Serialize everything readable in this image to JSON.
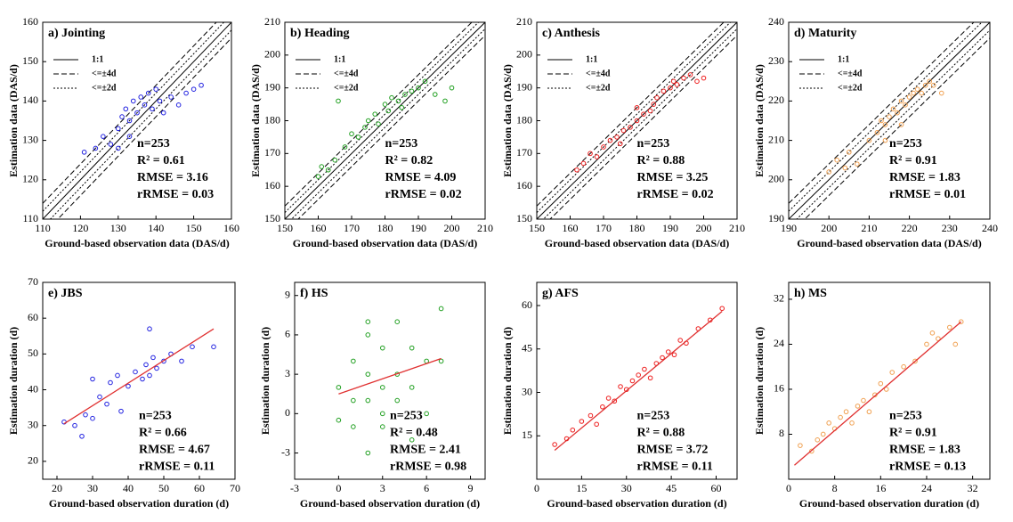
{
  "chart_data": [
    {
      "type": "scatter",
      "title": "a) Jointing",
      "xlabel": "Ground-based observation data (DAS/d)",
      "ylabel": "Estimation data (DAS/d)",
      "xlim": [
        110,
        160
      ],
      "ylim": [
        110,
        160
      ],
      "xticks": [
        110,
        120,
        130,
        140,
        150,
        160
      ],
      "yticks": [
        110,
        120,
        130,
        140,
        150,
        160
      ],
      "reference_lines": [
        {
          "label": "1:1",
          "offset": 0,
          "dash": "solid"
        },
        {
          "label": "<=±4d",
          "offset": 4,
          "dash": "dashed"
        },
        {
          "label": "<=±2d",
          "offset": 2,
          "dash": "dotted"
        }
      ],
      "series": [
        {
          "color": "#2222e0",
          "x": [
            121,
            124,
            126,
            128,
            130,
            131,
            132,
            133,
            134,
            135,
            136,
            137,
            138,
            139,
            140,
            141,
            142,
            144,
            146,
            148,
            150,
            152,
            130,
            133
          ],
          "values": [
            127,
            128,
            131,
            129,
            133,
            136,
            138,
            135,
            140,
            137,
            141,
            139,
            142,
            138,
            143,
            140,
            137,
            141,
            139,
            142,
            143,
            144,
            128,
            131
          ]
        }
      ],
      "annotations": [
        "n=253",
        "R² = 0.61",
        "RMSE = 3.16",
        "rRMSE = 0.03"
      ]
    },
    {
      "type": "scatter",
      "title": "b) Heading",
      "xlabel": "Ground-based observation data (DAS/d)",
      "ylabel": "Estimation data (DAS/d)",
      "xlim": [
        150,
        210
      ],
      "ylim": [
        150,
        210
      ],
      "xticks": [
        150,
        160,
        170,
        180,
        190,
        200,
        210
      ],
      "yticks": [
        150,
        160,
        170,
        180,
        190,
        200,
        210
      ],
      "reference_lines": [
        {
          "label": "1:1",
          "offset": 0,
          "dash": "solid"
        },
        {
          "label": "<=±4d",
          "offset": 4,
          "dash": "dashed"
        },
        {
          "label": "<=±2d",
          "offset": 2,
          "dash": "dotted"
        }
      ],
      "series": [
        {
          "color": "#22a022",
          "x": [
            160,
            161,
            163,
            165,
            166,
            168,
            170,
            172,
            174,
            175,
            177,
            178,
            180,
            181,
            182,
            184,
            185,
            186,
            188,
            190,
            192,
            195,
            198,
            200
          ],
          "values": [
            163,
            166,
            165,
            168,
            186,
            172,
            176,
            175,
            178,
            180,
            182,
            179,
            185,
            183,
            187,
            186,
            184,
            188,
            189,
            190,
            192,
            188,
            186,
            190
          ]
        }
      ],
      "annotations": [
        "n=253",
        "R² = 0.82",
        "RMSE = 4.09",
        "rRMSE = 0.02"
      ]
    },
    {
      "type": "scatter",
      "title": "c) Anthesis",
      "xlabel": "Ground-based observation data (DAS/d)",
      "ylabel": "Estimation data (DAS/d)",
      "xlim": [
        150,
        210
      ],
      "ylim": [
        150,
        210
      ],
      "xticks": [
        150,
        160,
        170,
        180,
        190,
        200,
        210
      ],
      "yticks": [
        150,
        160,
        170,
        180,
        190,
        200,
        210
      ],
      "reference_lines": [
        {
          "label": "1:1",
          "offset": 0,
          "dash": "solid"
        },
        {
          "label": "<=±4d",
          "offset": 4,
          "dash": "dashed"
        },
        {
          "label": "<=±2d",
          "offset": 2,
          "dash": "dotted"
        }
      ],
      "series": [
        {
          "color": "#ee2020",
          "x": [
            162,
            164,
            166,
            168,
            170,
            172,
            174,
            176,
            178,
            180,
            182,
            184,
            185,
            186,
            188,
            190,
            191,
            192,
            194,
            196,
            198,
            200,
            175,
            180
          ],
          "values": [
            165,
            167,
            170,
            169,
            172,
            174,
            175,
            177,
            178,
            180,
            182,
            183,
            185,
            187,
            189,
            190,
            192,
            191,
            193,
            194,
            192,
            193,
            173,
            184
          ]
        }
      ],
      "annotations": [
        "n=253",
        "R² = 0.88",
        "RMSE = 3.25",
        "rRMSE = 0.02"
      ]
    },
    {
      "type": "scatter",
      "title": "d) Maturity",
      "xlabel": "Ground-based observation data (DAS/d)",
      "ylabel": "Estimation data (DAS/d)",
      "xlim": [
        190,
        240
      ],
      "ylim": [
        190,
        240
      ],
      "xticks": [
        190,
        200,
        210,
        220,
        230,
        240
      ],
      "yticks": [
        190,
        200,
        210,
        220,
        230,
        240
      ],
      "reference_lines": [
        {
          "label": "1:1",
          "offset": 0,
          "dash": "solid"
        },
        {
          "label": "<=±4d",
          "offset": 4,
          "dash": "dashed"
        },
        {
          "label": "<=±2d",
          "offset": 2,
          "dash": "dotted"
        }
      ],
      "series": [
        {
          "color": "#f0a050",
          "x": [
            200,
            202,
            204,
            205,
            207,
            210,
            212,
            213,
            214,
            215,
            216,
            217,
            218,
            219,
            220,
            221,
            222,
            223,
            224,
            225,
            226,
            228,
            214,
            218
          ],
          "values": [
            202,
            205,
            203,
            207,
            204,
            210,
            212,
            215,
            214,
            216,
            218,
            217,
            220,
            219,
            221,
            222,
            223,
            222,
            224,
            225,
            224,
            222,
            210,
            214
          ]
        }
      ],
      "annotations": [
        "n=253",
        "R² = 0.91",
        "RMSE = 1.83",
        "rRMSE = 0.01"
      ]
    },
    {
      "type": "scatter",
      "title": "e) JBS",
      "xlabel": "Ground-based observation duration (d)",
      "ylabel": "Estimation duration (d)",
      "xlim": [
        16,
        70
      ],
      "ylim": [
        15,
        70
      ],
      "xticks": [
        20,
        30,
        40,
        50,
        60,
        70
      ],
      "yticks": [
        20,
        30,
        40,
        50,
        60,
        70
      ],
      "fit": {
        "color": "#e03030",
        "x": [
          22,
          64
        ],
        "y": [
          30.5,
          57
        ]
      },
      "series": [
        {
          "color": "#2222e0",
          "x": [
            22,
            25,
            27,
            28,
            30,
            32,
            34,
            35,
            37,
            40,
            42,
            44,
            45,
            46,
            47,
            48,
            50,
            52,
            55,
            58,
            64,
            46,
            30,
            38
          ],
          "values": [
            31,
            30,
            27,
            33,
            32,
            38,
            36,
            42,
            44,
            41,
            45,
            43,
            47,
            44,
            49,
            46,
            48,
            50,
            48,
            52,
            52,
            57,
            43,
            34
          ]
        }
      ],
      "annotations": [
        "n=253",
        "R² = 0.66",
        "RMSE = 4.67",
        "rRMSE = 0.11"
      ]
    },
    {
      "type": "scatter",
      "title": "f) HS",
      "xlabel": "Ground-based observation duration (d)",
      "ylabel": "Estimation duration (d)",
      "xlim": [
        -3,
        10
      ],
      "ylim": [
        -5,
        10
      ],
      "xticks": [
        -3,
        0,
        3,
        6,
        9
      ],
      "yticks": [
        -3,
        0,
        3,
        6,
        9
      ],
      "fit": {
        "color": "#e03030",
        "x": [
          0,
          7
        ],
        "y": [
          1.5,
          4.2
        ]
      },
      "series": [
        {
          "color": "#22a022",
          "x": [
            0,
            0,
            1,
            1,
            1,
            2,
            2,
            2,
            2,
            3,
            3,
            3,
            3,
            4,
            4,
            4,
            5,
            5,
            5,
            6,
            6,
            7,
            7,
            2
          ],
          "values": [
            2,
            -0.5,
            1,
            4,
            -1,
            3,
            6,
            -3,
            1,
            2,
            5,
            0,
            -1,
            3,
            7,
            1,
            2,
            5,
            -2,
            4,
            0,
            8,
            4,
            7
          ]
        }
      ],
      "annotations": [
        "n=253",
        "R² = 0.48",
        "RMSE = 2.41",
        "rRMSE = 0.98"
      ]
    },
    {
      "type": "scatter",
      "title": "g) AFS",
      "xlabel": "Ground-based observation duration (d)",
      "ylabel": "Estimation duration (d)",
      "xlim": [
        0,
        67
      ],
      "ylim": [
        0,
        68
      ],
      "xticks": [
        0,
        15,
        30,
        45,
        60
      ],
      "yticks": [
        15,
        30,
        45,
        60
      ],
      "fit": {
        "color": "#e03030",
        "x": [
          6,
          62
        ],
        "y": [
          10,
          58
        ]
      },
      "series": [
        {
          "color": "#ee2020",
          "x": [
            6,
            10,
            12,
            15,
            18,
            20,
            22,
            24,
            26,
            28,
            30,
            32,
            34,
            36,
            38,
            40,
            42,
            44,
            46,
            48,
            50,
            54,
            58,
            62
          ],
          "values": [
            12,
            14,
            17,
            20,
            22,
            19,
            25,
            28,
            27,
            32,
            31,
            34,
            36,
            38,
            35,
            40,
            42,
            44,
            43,
            48,
            47,
            52,
            55,
            59
          ]
        }
      ],
      "annotations": [
        "n=253",
        "R² = 0.88",
        "RMSE = 3.72",
        "rRMSE = 0.11"
      ]
    },
    {
      "type": "scatter",
      "title": "h) MS",
      "xlabel": "Ground-based observation duration (d)",
      "ylabel": "Estimation duration (d)",
      "xlim": [
        0,
        35
      ],
      "ylim": [
        0,
        35
      ],
      "xticks": [
        0,
        8,
        16,
        24,
        32
      ],
      "yticks": [
        8,
        16,
        24,
        32
      ],
      "fit": {
        "color": "#e03030",
        "x": [
          1,
          30
        ],
        "y": [
          2.5,
          28
        ]
      },
      "series": [
        {
          "color": "#f0a050",
          "x": [
            2,
            4,
            5,
            6,
            7,
            8,
            9,
            10,
            11,
            12,
            13,
            14,
            15,
            16,
            17,
            18,
            20,
            22,
            24,
            25,
            26,
            28,
            29,
            30
          ],
          "values": [
            6,
            5,
            7,
            8,
            10,
            9,
            11,
            12,
            10,
            13,
            14,
            12,
            15,
            17,
            16,
            19,
            20,
            21,
            24,
            26,
            25,
            27,
            24,
            28
          ]
        }
      ],
      "annotations": [
        "n=253",
        "R² = 0.91",
        "RMSE = 1.83",
        "rRMSE = 0.13"
      ]
    }
  ]
}
